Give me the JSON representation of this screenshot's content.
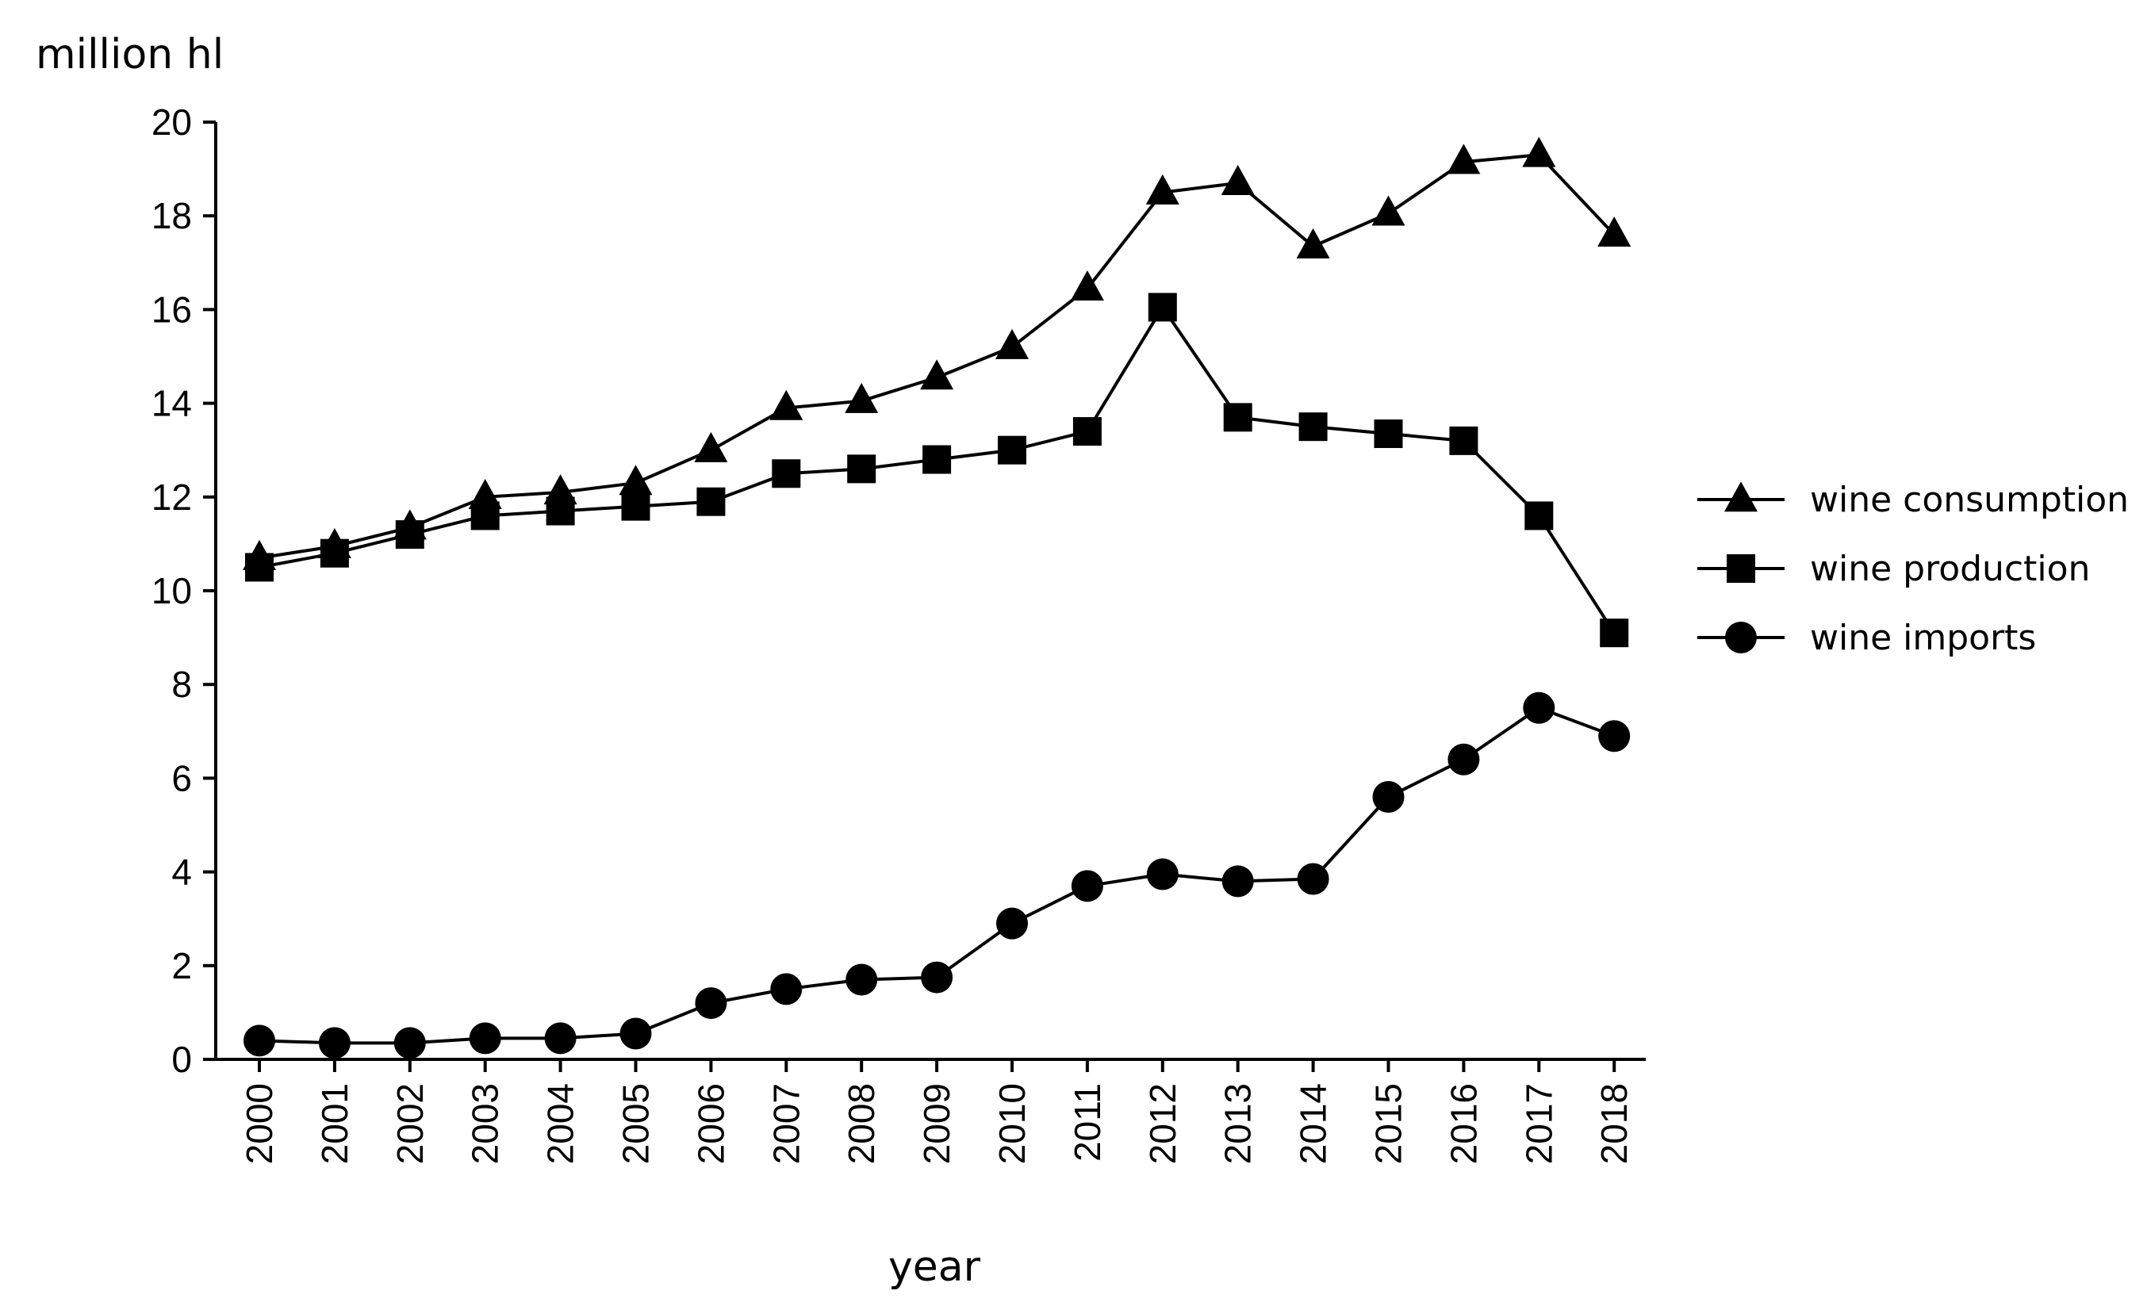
{
  "chart_data": {
    "type": "line",
    "ylabel": "million hl",
    "xlabel": "year",
    "ylim": [
      0,
      20
    ],
    "yticks": [
      0,
      2,
      4,
      6,
      8,
      10,
      12,
      14,
      16,
      18,
      20
    ],
    "x": [
      "2000",
      "2001",
      "2002",
      "2003",
      "2004",
      "2005",
      "2006",
      "2007",
      "2008",
      "2009",
      "2010",
      "2011",
      "2012",
      "2013",
      "2014",
      "2015",
      "2016",
      "2017",
      "2018"
    ],
    "grid": false,
    "legend_position": "right",
    "series": [
      {
        "name": "wine consumption",
        "marker": "triangle",
        "values": [
          10.7,
          10.95,
          11.35,
          12.0,
          12.1,
          12.3,
          13.0,
          13.9,
          14.05,
          14.55,
          15.2,
          16.45,
          18.5,
          18.7,
          17.35,
          18.05,
          19.15,
          19.3,
          17.6
        ]
      },
      {
        "name": "wine production",
        "marker": "square",
        "values": [
          10.5,
          10.8,
          11.2,
          11.6,
          11.7,
          11.8,
          11.9,
          12.5,
          12.6,
          12.8,
          13.0,
          13.4,
          16.05,
          13.7,
          13.5,
          13.35,
          13.2,
          11.6,
          9.1
        ]
      },
      {
        "name": "wine imports",
        "marker": "circle",
        "values": [
          0.4,
          0.35,
          0.35,
          0.45,
          0.45,
          0.55,
          1.2,
          1.5,
          1.7,
          1.75,
          2.9,
          3.7,
          3.95,
          3.8,
          3.85,
          5.6,
          6.4,
          7.5,
          6.9
        ]
      }
    ]
  }
}
